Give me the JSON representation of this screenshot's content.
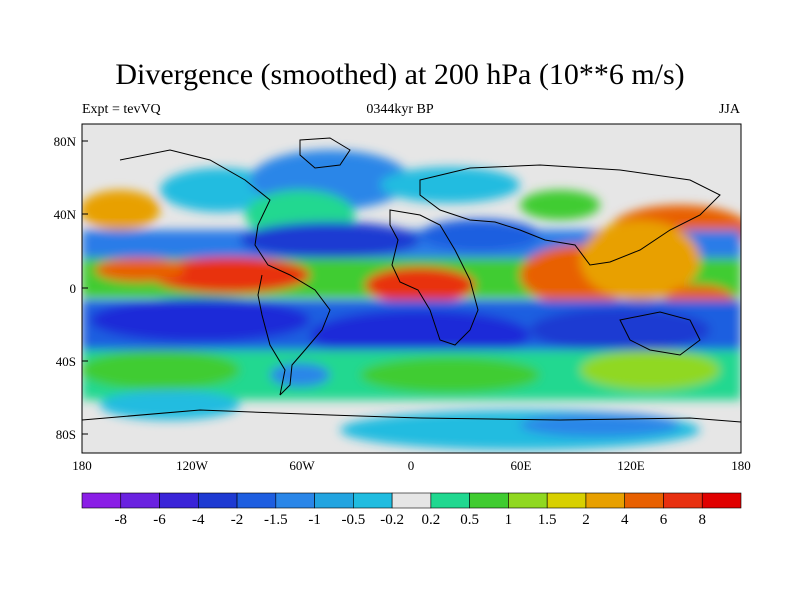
{
  "title": "Divergence (smoothed) at 200 hPa (10**6 m/s)",
  "left_label": "Expt = tevVQ",
  "center_label": "0344kyr BP",
  "right_label": "JJA",
  "lat_ticks": [
    "80N",
    "40N",
    "0",
    "40S",
    "80S"
  ],
  "lon_ticks": [
    "180",
    "120W",
    "60W",
    "0",
    "60E",
    "120E",
    "180"
  ],
  "colorbar": {
    "labels": [
      "-8",
      "-6",
      "-4",
      "-2",
      "-1.5",
      "-1",
      "-0.5",
      "-0.2",
      "0.2",
      "0.5",
      "1",
      "1.5",
      "2",
      "4",
      "6",
      "8"
    ],
    "colors": [
      "#8a1ee6",
      "#6a22e0",
      "#3a24d8",
      "#1e3ad2",
      "#1e5ee0",
      "#2a86e8",
      "#22a4e0",
      "#20bce0",
      "#e6e6e6",
      "#20d890",
      "#40cc30",
      "#90d820",
      "#d8d000",
      "#e8a000",
      "#e86000",
      "#e83010",
      "#e00000"
    ]
  },
  "colors": {
    "background": "#e6e6e6",
    "strong_neg": "#1e2ad8",
    "mid_neg": "#2a7ce8",
    "weak_neg": "#20bce0",
    "weak_pos": "#20d890",
    "mid_pos": "#60cc30",
    "pos_yellow": "#d8d000",
    "pos_orange": "#e87000",
    "strong_pos": "#e02000"
  }
}
